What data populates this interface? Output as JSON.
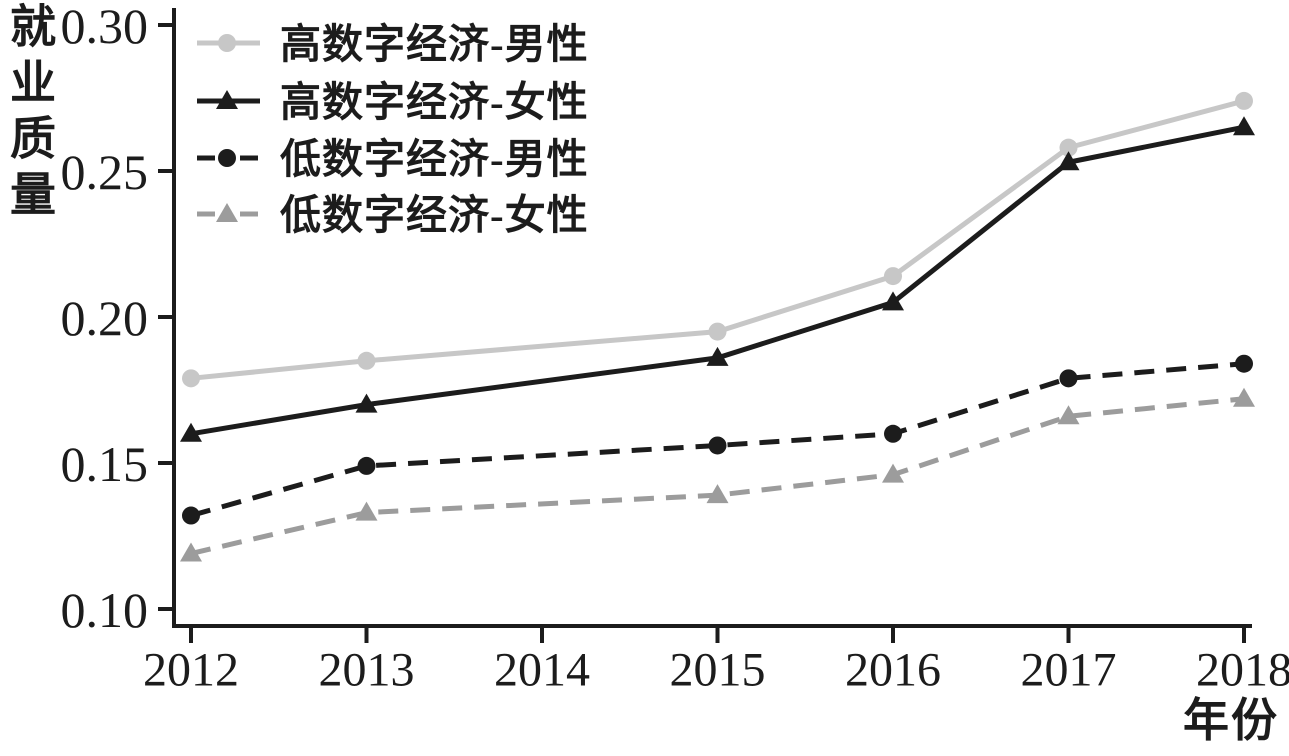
{
  "chart_data": {
    "type": "line",
    "title": "",
    "ylabel": "就业质量",
    "xlabel": "年份",
    "x_ticks": [
      2012,
      2013,
      2014,
      2015,
      2016,
      2017,
      2018
    ],
    "y_ticks": [
      0.3,
      0.25,
      0.2,
      0.15,
      0.1
    ],
    "y_tick_labels": [
      "0.30",
      "0.25",
      "0.20",
      "0.15",
      "0.10"
    ],
    "xlim": [
      2011.89,
      2018.05
    ],
    "ylim": [
      0.094,
      0.309
    ],
    "grid": false,
    "legend_position": "top-left",
    "axis_color": "#1c1c1c",
    "x": [
      2012,
      2013,
      2015,
      2016,
      2017,
      2018
    ],
    "series": [
      {
        "name": "高数字经济-男性",
        "color": "#c7c7c7",
        "line_style": "solid",
        "marker": "circle",
        "values": [
          0.179,
          0.185,
          0.195,
          0.214,
          0.258,
          0.274
        ]
      },
      {
        "name": "高数字经济-女性",
        "color": "#1c1c1c",
        "line_style": "solid",
        "marker": "triangle",
        "values": [
          0.16,
          0.17,
          0.186,
          0.205,
          0.253,
          0.265
        ]
      },
      {
        "name": "低数字经济-男性",
        "color": "#1c1c1c",
        "line_style": "dashed",
        "marker": "circle",
        "values": [
          0.132,
          0.149,
          0.156,
          0.16,
          0.179,
          0.184
        ]
      },
      {
        "name": "低数字经济-女性",
        "color": "#9c9c9c",
        "line_style": "dashed",
        "marker": "triangle",
        "values": [
          0.119,
          0.133,
          0.139,
          0.146,
          0.166,
          0.172
        ]
      }
    ]
  }
}
